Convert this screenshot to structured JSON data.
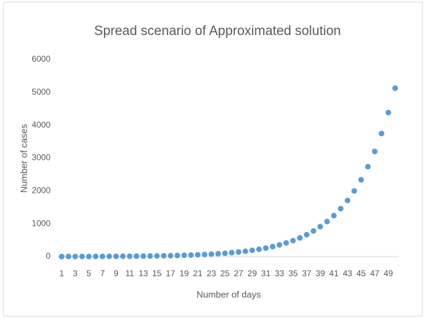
{
  "chart_data": {
    "type": "line",
    "title": "Spread scenario of Approximated solution",
    "x_label": "Number of days",
    "y_label": "Number of cases",
    "categories": [
      1,
      null,
      3,
      null,
      5,
      null,
      7,
      null,
      9,
      null,
      11,
      null,
      13,
      null,
      15,
      null,
      17,
      null,
      19,
      null,
      21,
      null,
      23,
      null,
      25,
      null,
      27,
      null,
      29,
      null,
      31,
      null,
      33,
      null,
      35,
      null,
      37,
      null,
      39,
      null,
      41,
      null,
      43,
      null,
      45,
      null,
      47,
      null,
      49,
      null
    ],
    "series": [
      {
        "name": "Number of cases",
        "color": "#5b9bd5",
        "values": [
          2,
          3,
          3,
          4,
          4,
          5,
          6,
          7,
          8,
          10,
          11,
          13,
          15,
          18,
          21,
          25,
          29,
          34,
          40,
          46,
          54,
          63,
          74,
          87,
          101,
          119,
          139,
          162,
          190,
          222,
          260,
          304,
          356,
          416,
          487,
          570,
          666,
          780,
          912,
          1067,
          1249,
          1461,
          1709,
          2000,
          2340,
          2738,
          3203,
          3748,
          4385,
          5130
        ]
      }
    ],
    "ylim": [
      0,
      6000
    ],
    "yticks": [
      0,
      1000,
      2000,
      3000,
      4000,
      5000,
      6000
    ],
    "grid": false
  }
}
